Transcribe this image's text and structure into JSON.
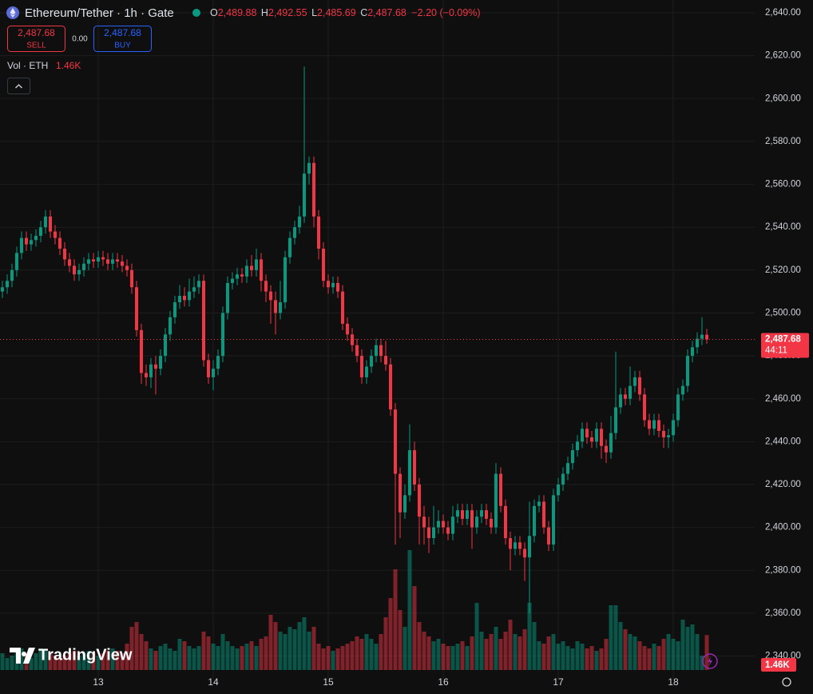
{
  "chart_data": {
    "type": "candlestick",
    "title": "Ethereum/Tether · 1h · Gate",
    "legend_ohlc": [
      {
        "label": "O",
        "value": "2,489.88"
      },
      {
        "label": "H",
        "value": "2,492.55"
      },
      {
        "label": "L",
        "value": "2,485.69"
      },
      {
        "label": "C",
        "value": "2,487.68"
      }
    ],
    "change": "−2.20 (−0.09%)",
    "sell_price": "2,487.68",
    "sell_label": "SELL",
    "spread": "0.00",
    "buy_price": "2,487.68",
    "buy_label": "BUY",
    "volume_title": "Vol · ETH",
    "volume_label": "1.46K",
    "last_price_label": "2,487.68",
    "countdown": "44:11",
    "brand": "TradingView",
    "up_color": "#089981",
    "down_color": "#f23645",
    "grid": true,
    "xlim": [
      -0.5,
      157
    ],
    "xticks": [
      {
        "value": 20,
        "label": "13"
      },
      {
        "value": 44,
        "label": "14"
      },
      {
        "value": 68,
        "label": "15"
      },
      {
        "value": 92,
        "label": "16"
      },
      {
        "value": 116,
        "label": "17"
      },
      {
        "value": 140,
        "label": "18"
      }
    ],
    "ylim": [
      2329,
      2643
    ],
    "yticks": [
      {
        "value": 2340,
        "label": "2,340.00"
      },
      {
        "value": 2360,
        "label": "2,360.00"
      },
      {
        "value": 2380,
        "label": "2,380.00"
      },
      {
        "value": 2400,
        "label": "2,400.00"
      },
      {
        "value": 2420,
        "label": "2,420.00"
      },
      {
        "value": 2440,
        "label": "2,440.00"
      },
      {
        "value": 2460,
        "label": "2,460.00"
      },
      {
        "value": 2480,
        "label": "2,480.00"
      },
      {
        "value": 2500,
        "label": "2,500.00"
      },
      {
        "value": 2520,
        "label": "2,520.00"
      },
      {
        "value": 2540,
        "label": "2,540.00"
      },
      {
        "value": 2560,
        "label": "2,560.00"
      },
      {
        "value": 2580,
        "label": "2,580.00"
      },
      {
        "value": 2600,
        "label": "2,600.00"
      },
      {
        "value": 2620,
        "label": "2,620.00"
      },
      {
        "value": 2640,
        "label": "2,640.00"
      }
    ],
    "volume_ylim": [
      0,
      28000
    ],
    "open": [
      2510,
      2512,
      2515,
      2520,
      2528,
      2535,
      2532,
      2534,
      2536,
      2540,
      2545,
      2538,
      2535,
      2530,
      2525,
      2522,
      2518,
      2520,
      2523,
      2525,
      2524,
      2526,
      2525,
      2523,
      2525,
      2524,
      2522,
      2520,
      2512,
      2492,
      2472,
      2470,
      2476,
      2474,
      2480,
      2490,
      2498,
      2505,
      2508,
      2506,
      2510,
      2512,
      2515,
      2478,
      2470,
      2474,
      2480,
      2500,
      2514,
      2516,
      2518,
      2517,
      2522,
      2520,
      2525,
      2515,
      2510,
      2506,
      2500,
      2505,
      2526,
      2535,
      2540,
      2545,
      2565,
      2570,
      2545,
      2530,
      2515,
      2512,
      2514,
      2510,
      2495,
      2490,
      2485,
      2480,
      2470,
      2475,
      2480,
      2485,
      2480,
      2476,
      2455,
      2425,
      2407,
      2415,
      2436,
      2420,
      2405,
      2400,
      2395,
      2400,
      2403,
      2400,
      2397,
      2405,
      2408,
      2404,
      2408,
      2400,
      2405,
      2408,
      2404,
      2400,
      2425,
      2410,
      2395,
      2390,
      2393,
      2390,
      2386,
      2396,
      2410,
      2412,
      2400,
      2392,
      2415,
      2420,
      2425,
      2430,
      2436,
      2440,
      2446,
      2442,
      2440,
      2446,
      2438,
      2435,
      2444,
      2456,
      2462,
      2460,
      2466,
      2470,
      2462,
      2450,
      2446,
      2450,
      2445,
      2442,
      2443,
      2450,
      2462,
      2466,
      2480,
      2484,
      2488,
      2489.88
    ],
    "high": [
      2515,
      2518,
      2523,
      2531,
      2538,
      2538,
      2537,
      2539,
      2543,
      2548,
      2548,
      2541,
      2538,
      2533,
      2528,
      2525,
      2523,
      2526,
      2528,
      2528,
      2529,
      2529,
      2528,
      2528,
      2528,
      2527,
      2525,
      2523,
      2515,
      2495,
      2476,
      2479,
      2480,
      2483,
      2493,
      2501,
      2508,
      2513,
      2512,
      2516,
      2517,
      2518,
      2518,
      2481,
      2478,
      2483,
      2503,
      2517,
      2519,
      2521,
      2521,
      2525,
      2527,
      2530,
      2528,
      2518,
      2513,
      2510,
      2515,
      2529,
      2538,
      2543,
      2550,
      2615,
      2573,
      2573,
      2548,
      2533,
      2518,
      2517,
      2517,
      2513,
      2498,
      2493,
      2488,
      2483,
      2478,
      2483,
      2488,
      2488,
      2487,
      2479,
      2458,
      2428,
      2420,
      2448,
      2440,
      2423,
      2410,
      2405,
      2410,
      2408,
      2406,
      2403,
      2410,
      2411,
      2411,
      2411,
      2411,
      2408,
      2411,
      2411,
      2407,
      2430,
      2428,
      2413,
      2398,
      2396,
      2396,
      2393,
      2412,
      2413,
      2415,
      2415,
      2403,
      2418,
      2423,
      2428,
      2433,
      2439,
      2443,
      2449,
      2449,
      2445,
      2449,
      2449,
      2441,
      2452,
      2482,
      2465,
      2465,
      2475,
      2473,
      2473,
      2465,
      2453,
      2453,
      2453,
      2448,
      2446,
      2453,
      2465,
      2469,
      2483,
      2487,
      2491,
      2498,
      2492.55
    ],
    "low": [
      2507,
      2509,
      2512,
      2517,
      2525,
      2529,
      2529,
      2531,
      2533,
      2537,
      2535,
      2532,
      2527,
      2522,
      2519,
      2515,
      2515,
      2517,
      2520,
      2521,
      2521,
      2522,
      2520,
      2520,
      2521,
      2519,
      2517,
      2509,
      2489,
      2467,
      2466,
      2465,
      2462,
      2471,
      2477,
      2487,
      2495,
      2502,
      2503,
      2503,
      2507,
      2509,
      2475,
      2467,
      2464,
      2471,
      2477,
      2497,
      2511,
      2513,
      2514,
      2514,
      2517,
      2517,
      2510,
      2505,
      2495,
      2490,
      2497,
      2502,
      2523,
      2532,
      2537,
      2542,
      2560,
      2540,
      2525,
      2512,
      2509,
      2509,
      2507,
      2492,
      2487,
      2482,
      2477,
      2467,
      2467,
      2472,
      2477,
      2477,
      2473,
      2452,
      2392,
      2395,
      2404,
      2412,
      2417,
      2392,
      2392,
      2388,
      2392,
      2397,
      2397,
      2394,
      2394,
      2402,
      2401,
      2401,
      2390,
      2397,
      2402,
      2401,
      2397,
      2397,
      2407,
      2392,
      2380,
      2387,
      2387,
      2375,
      2360,
      2393,
      2407,
      2397,
      2389,
      2389,
      2412,
      2417,
      2422,
      2427,
      2433,
      2437,
      2439,
      2437,
      2437,
      2432,
      2430,
      2432,
      2441,
      2453,
      2457,
      2457,
      2463,
      2459,
      2447,
      2443,
      2443,
      2442,
      2437,
      2437,
      2440,
      2447,
      2459,
      2463,
      2477,
      2481,
      2485,
      2485.69
    ],
    "close": [
      2512,
      2515,
      2520,
      2528,
      2535,
      2532,
      2534,
      2536,
      2540,
      2545,
      2538,
      2535,
      2530,
      2525,
      2522,
      2518,
      2520,
      2523,
      2525,
      2524,
      2526,
      2525,
      2523,
      2525,
      2524,
      2522,
      2520,
      2512,
      2492,
      2472,
      2470,
      2476,
      2474,
      2480,
      2490,
      2498,
      2505,
      2508,
      2506,
      2510,
      2512,
      2515,
      2478,
      2470,
      2474,
      2480,
      2500,
      2514,
      2516,
      2518,
      2517,
      2522,
      2520,
      2525,
      2515,
      2510,
      2506,
      2500,
      2505,
      2526,
      2535,
      2540,
      2545,
      2565,
      2570,
      2545,
      2530,
      2515,
      2512,
      2514,
      2510,
      2495,
      2490,
      2485,
      2480,
      2470,
      2475,
      2480,
      2485,
      2480,
      2476,
      2455,
      2425,
      2407,
      2415,
      2436,
      2420,
      2405,
      2400,
      2395,
      2400,
      2403,
      2400,
      2397,
      2405,
      2408,
      2404,
      2408,
      2400,
      2405,
      2408,
      2404,
      2400,
      2425,
      2410,
      2395,
      2390,
      2393,
      2390,
      2386,
      2396,
      2410,
      2412,
      2400,
      2392,
      2415,
      2420,
      2425,
      2430,
      2436,
      2440,
      2446,
      2442,
      2440,
      2446,
      2438,
      2435,
      2444,
      2456,
      2462,
      2460,
      2466,
      2470,
      2462,
      2450,
      2446,
      2450,
      2445,
      2442,
      2443,
      2450,
      2462,
      2466,
      2480,
      2484,
      2488,
      2489.88,
      2487.68
    ],
    "volume": [
      700,
      500,
      600,
      800,
      900,
      600,
      500,
      700,
      900,
      800,
      700,
      600,
      500,
      600,
      700,
      800,
      600,
      700,
      800,
      700,
      600,
      700,
      800,
      900,
      800,
      700,
      1100,
      1800,
      2000,
      1500,
      1200,
      900,
      800,
      1000,
      1100,
      900,
      800,
      1300,
      1200,
      1000,
      900,
      1000,
      1600,
      1400,
      1100,
      1000,
      1500,
      1200,
      1000,
      900,
      1000,
      1100,
      1200,
      1000,
      1300,
      1400,
      2300,
      2000,
      1600,
      1500,
      1800,
      1700,
      2000,
      2200,
      1600,
      1800,
      1100,
      900,
      1000,
      800,
      900,
      1000,
      1100,
      1200,
      1400,
      1300,
      1500,
      1300,
      1100,
      1500,
      2200,
      3000,
      4200,
      2500,
      1800,
      5000,
      3500,
      2000,
      1600,
      1400,
      1200,
      1300,
      1100,
      1000,
      1000,
      1100,
      1200,
      1000,
      1400,
      2800,
      1600,
      1300,
      1500,
      1800,
      1300,
      1600,
      2100,
      1500,
      1400,
      1700,
      2800,
      2000,
      1200,
      1100,
      1400,
      1500,
      1100,
      1200,
      1000,
      900,
      1200,
      1100,
      900,
      1000,
      800,
      900,
      1300,
      2700,
      2700,
      2000,
      1700,
      1500,
      1400,
      1200,
      1000,
      900,
      1100,
      1000,
      1300,
      1500,
      1300,
      1200,
      2100,
      1800,
      1900,
      1500,
      600,
      1460
    ]
  }
}
